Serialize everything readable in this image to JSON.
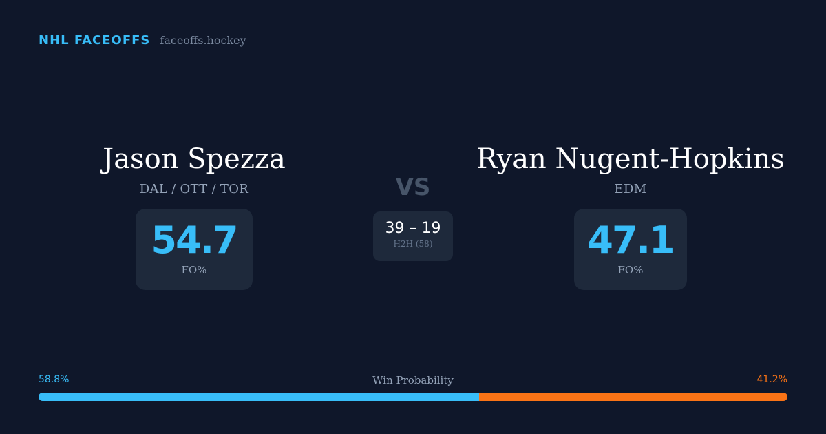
{
  "brand": {
    "name": "NHL FACEOFFS",
    "domain": "faceoffs.hockey"
  },
  "player1": {
    "name": "Jason Spezza",
    "teams": "DAL / OTT / TOR",
    "fo_pct": "54.7",
    "fo_label": "FO%"
  },
  "player2": {
    "name": "Ryan Nugent-Hopkins",
    "teams": "EDM",
    "fo_pct": "47.1",
    "fo_label": "FO%"
  },
  "versus": "VS",
  "h2h": {
    "record": "39 – 19",
    "label": "H2H (58)"
  },
  "win_probability": {
    "title": "Win Probability",
    "left_label": "58.8%",
    "right_label": "41.2%",
    "left_fraction": 0.588,
    "right_fraction": 0.412
  },
  "colors": {
    "background": "#0f172a",
    "card": "#1e293b",
    "accent": "#38bdf8",
    "opponent": "#f97316"
  }
}
